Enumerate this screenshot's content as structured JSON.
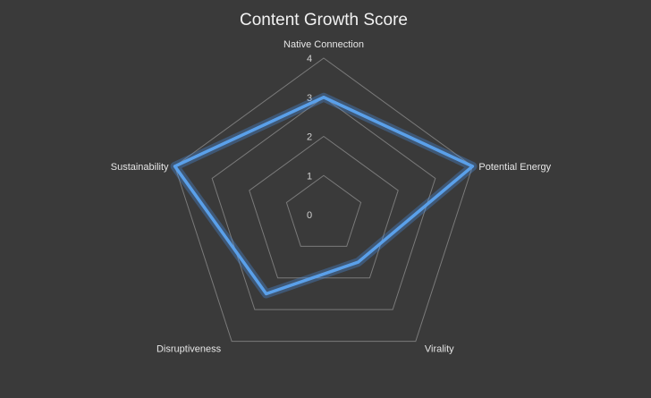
{
  "chart_data": {
    "type": "radar",
    "title": "Content Growth Score",
    "categories": [
      "Native Connection",
      "Potential Energy",
      "Virality",
      "Disruptiveness",
      "Sustainability"
    ],
    "series": [
      {
        "values": [
          3,
          4,
          1.5,
          2.5,
          4
        ]
      }
    ],
    "rlim": [
      0,
      4
    ],
    "ticks": [
      "0",
      "1",
      "2",
      "3",
      "4"
    ],
    "grid": true,
    "legend": "none",
    "colors": {
      "background": "#3a3a3a",
      "series": "#5aa0ea",
      "grid": "#7a7a7a"
    }
  }
}
